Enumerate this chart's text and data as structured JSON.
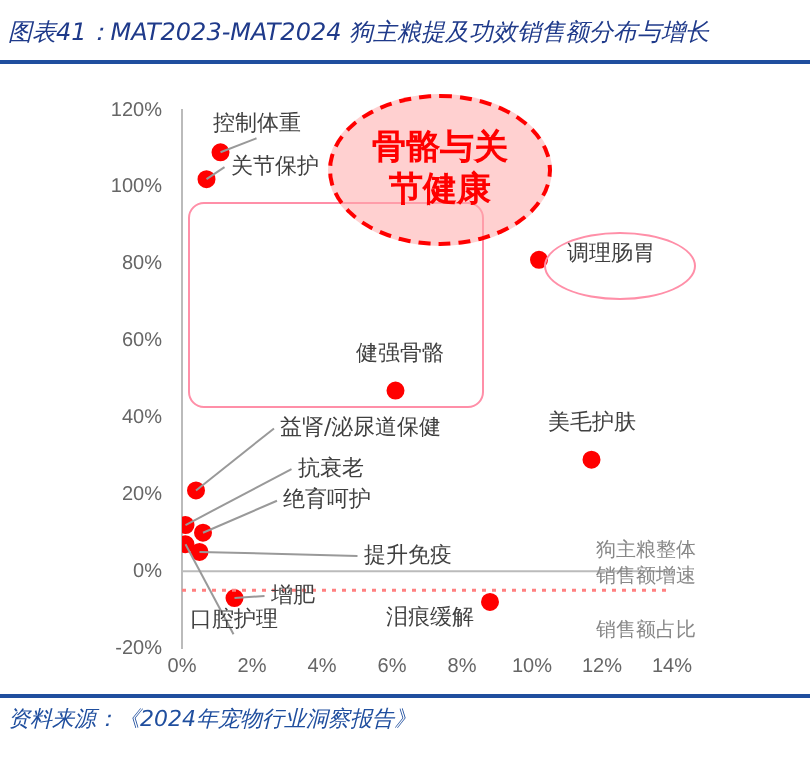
{
  "chart_data": {
    "type": "scatter",
    "title": "图表41：MAT2023-MAT2024 狗主粮提及功效销售额分布与增长",
    "xlabel": "销售额占比",
    "x": [
      1.1,
      0.7,
      6.1,
      10.2,
      11.7,
      8.8,
      1.5,
      0.1,
      0.4,
      0.1,
      0.6,
      0.5
    ],
    "series": [
      {
        "color": "#ff0000",
        "values": [
          109,
          102,
          47,
          81,
          29,
          -8,
          -7,
          7,
          21,
          12,
          10,
          5
        ]
      }
    ],
    "marker": "circle",
    "grid": false,
    "legend": false,
    "xlim": [
      0,
      14
    ],
    "xticks": [
      {
        "value": 0,
        "label": "0%"
      },
      {
        "value": 2,
        "label": "2%"
      },
      {
        "value": 4,
        "label": "4%"
      },
      {
        "value": 6,
        "label": "6%"
      },
      {
        "value": 8,
        "label": "8%"
      },
      {
        "value": 10,
        "label": "10%"
      },
      {
        "value": 12,
        "label": "12%"
      },
      {
        "value": 14,
        "label": "14%"
      }
    ],
    "ylim": [
      -20,
      120
    ],
    "yticks": [
      {
        "value": -20,
        "label": "-20%"
      },
      {
        "value": 0,
        "label": "0%"
      },
      {
        "value": 20,
        "label": "20%"
      },
      {
        "value": 40,
        "label": "40%"
      },
      {
        "value": 60,
        "label": "60%"
      },
      {
        "value": 80,
        "label": "80%"
      },
      {
        "value": 100,
        "label": "100%"
      },
      {
        "value": 120,
        "label": "120%"
      }
    ],
    "ref_lines": [
      {
        "axis": "y",
        "value": 0,
        "color": "#bbbbbb",
        "line_style": "solid"
      },
      {
        "axis": "y",
        "value": -5,
        "label": "狗主粮整体销售额增速",
        "color": "#ff8080",
        "line_style": "dotted"
      }
    ],
    "annotations": [
      {
        "text": "控制体重",
        "x": 1.1,
        "y": 109
      },
      {
        "text": "关节保护",
        "x": 0.7,
        "y": 102
      },
      {
        "text": "健强骨骼",
        "x": 6.1,
        "y": 47
      },
      {
        "text": "调理肠胃",
        "x": 10.2,
        "y": 81
      },
      {
        "text": "美毛护肤",
        "x": 11.7,
        "y": 29
      },
      {
        "text": "泪痕缓解",
        "x": 8.8,
        "y": -8
      },
      {
        "text": "增肥",
        "x": 1.5,
        "y": -7
      },
      {
        "text": "口腔护理",
        "x": 0.1,
        "y": 7
      },
      {
        "text": "益肾/泌尿道保健",
        "x": 0.4,
        "y": 21
      },
      {
        "text": "抗衰老",
        "x": 0.1,
        "y": 12
      },
      {
        "text": "绝育呵护",
        "x": 0.6,
        "y": 10
      },
      {
        "text": "提升免疫",
        "x": 0.5,
        "y": 5
      },
      "骨骼与关节健康",
      "资料来源：《2024年宠物行业洞察报告》"
    ]
  }
}
